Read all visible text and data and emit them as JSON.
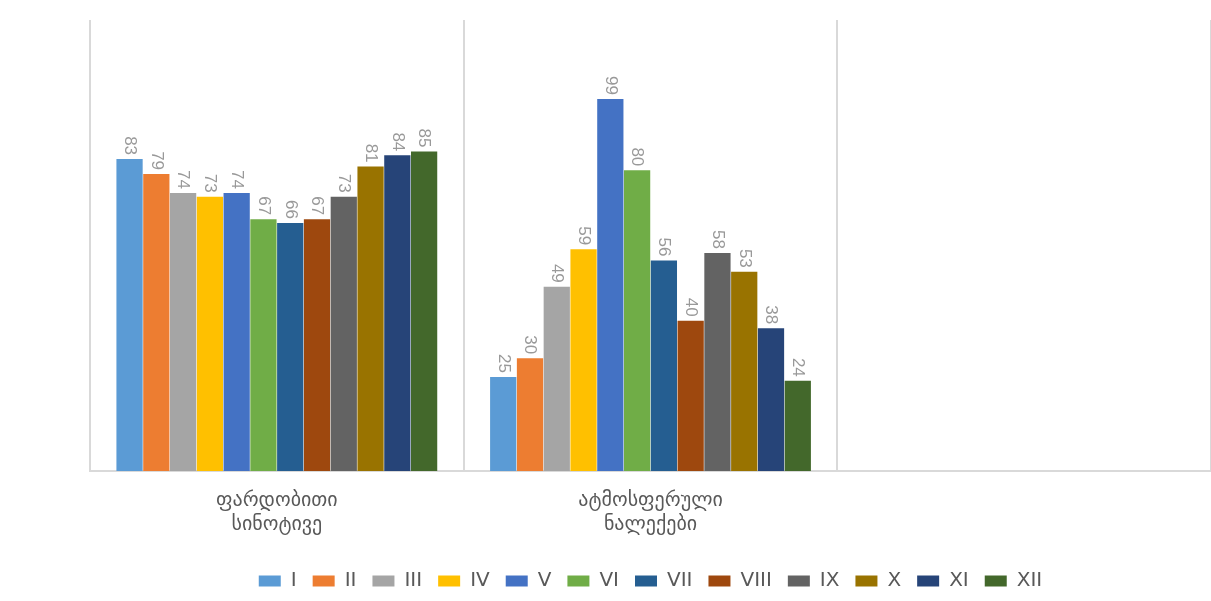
{
  "chart_data": {
    "type": "bar",
    "categories": [
      "ფარდობითი სინოტივე",
      "ატმოსფერული ნალექები",
      null
    ],
    "series": [
      {
        "name": "I",
        "color": "#5b9bd5",
        "values": [
          83,
          25,
          null
        ]
      },
      {
        "name": "II",
        "color": "#ed7d31",
        "values": [
          79,
          30,
          null
        ]
      },
      {
        "name": "III",
        "color": "#a5a5a5",
        "values": [
          74,
          49,
          null
        ]
      },
      {
        "name": "IV",
        "color": "#ffc000",
        "values": [
          73,
          59,
          null
        ]
      },
      {
        "name": "V",
        "color": "#4472c4",
        "values": [
          74,
          99,
          null
        ]
      },
      {
        "name": "VI",
        "color": "#70ad47",
        "values": [
          67,
          80,
          null
        ]
      },
      {
        "name": "VII",
        "color": "#255e91",
        "values": [
          66,
          56,
          null
        ]
      },
      {
        "name": "VIII",
        "color": "#9e480e",
        "values": [
          67,
          40,
          null
        ]
      },
      {
        "name": "IX",
        "color": "#636363",
        "values": [
          73,
          58,
          null
        ]
      },
      {
        "name": "X",
        "color": "#997300",
        "values": [
          81,
          53,
          null
        ]
      },
      {
        "name": "XI",
        "color": "#264478",
        "values": [
          84,
          38,
          null
        ]
      },
      {
        "name": "XII",
        "color": "#43682b",
        "values": [
          85,
          24,
          null
        ]
      }
    ],
    "data_labels": true,
    "grid": "x",
    "legend": "bottom",
    "tick_labels": "x"
  }
}
